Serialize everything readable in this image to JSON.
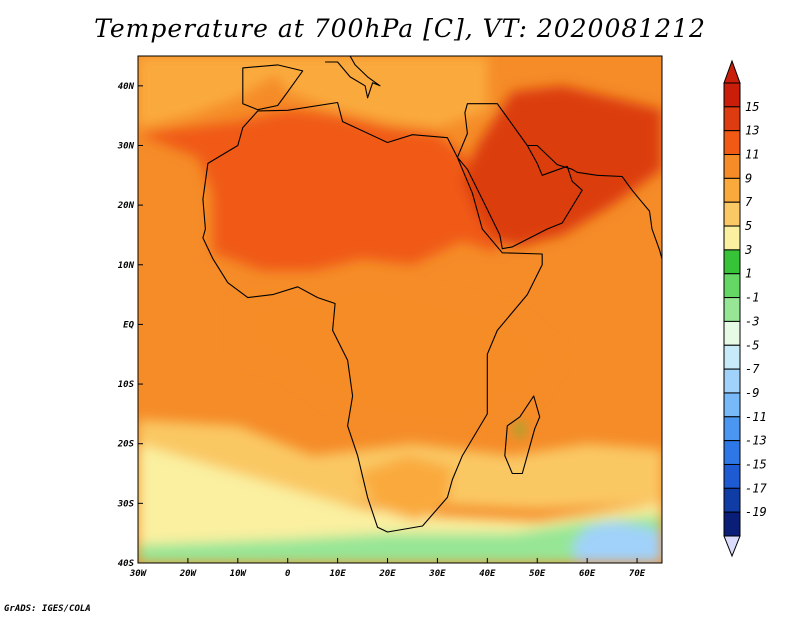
{
  "title": "Temperature at 700hPa [C], VT: 2020081212",
  "credit": "GrADS: IGES/COLA",
  "chart_data": {
    "type": "heatmap",
    "variable": "Temperature at 700hPa",
    "units": "C",
    "valid_time": "2020081212",
    "lon_range": [
      -30,
      75
    ],
    "lat_range": [
      -40,
      45
    ],
    "x_tick_labels": [
      {
        "lon": -30,
        "label": "30W"
      },
      {
        "lon": -20,
        "label": "20W"
      },
      {
        "lon": -10,
        "label": "10W"
      },
      {
        "lon": 0,
        "label": "0"
      },
      {
        "lon": 10,
        "label": "10E"
      },
      {
        "lon": 20,
        "label": "20E"
      },
      {
        "lon": 30,
        "label": "30E"
      },
      {
        "lon": 40,
        "label": "40E"
      },
      {
        "lon": 50,
        "label": "50E"
      },
      {
        "lon": 60,
        "label": "60E"
      },
      {
        "lon": 70,
        "label": "70E"
      }
    ],
    "y_tick_labels": [
      {
        "lat": 40,
        "label": "40N"
      },
      {
        "lat": 30,
        "label": "30N"
      },
      {
        "lat": 20,
        "label": "20N"
      },
      {
        "lat": 10,
        "label": "10N"
      },
      {
        "lat": 0,
        "label": "EQ"
      },
      {
        "lat": -10,
        "label": "10S"
      },
      {
        "lat": -20,
        "label": "20S"
      },
      {
        "lat": -30,
        "label": "30S"
      },
      {
        "lat": -40,
        "label": "40S"
      }
    ],
    "colorbar": {
      "levels": [
        15,
        13,
        11,
        9,
        7,
        5,
        3,
        1,
        -1,
        -3,
        -5,
        -7,
        -9,
        -11,
        -13,
        -15,
        -17,
        -19
      ],
      "labels": [
        "15",
        "13",
        "11",
        "9",
        "7",
        "5",
        "3",
        "1",
        "-1",
        "-3",
        "-5",
        "-7",
        "-9",
        "-11",
        "-13",
        "-15",
        "-17",
        "-19"
      ],
      "colors": [
        "#c81e0a",
        "#dc3c0f",
        "#f05a14",
        "#f58c28",
        "#faaa3c",
        "#fac864",
        "#faf0a0",
        "#37c337",
        "#64d764",
        "#96e696",
        "#e6fae6",
        "#c8ebfa",
        "#a0d2fa",
        "#78b9fa",
        "#4b96f0",
        "#2d78e6",
        "#1e5ad2",
        "#0f3ca5",
        "#0a1e78"
      ],
      "top_arrow_color": "#c81e0a",
      "bottom_arrow_color": "#dcdcff"
    },
    "field_regions": [
      {
        "name": "background",
        "value": 9
      },
      {
        "name": "south-atlantic-band",
        "value": 5
      },
      {
        "name": "southern-ocean",
        "value": 3
      },
      {
        "name": "southern-cold",
        "value": -3
      },
      {
        "name": "far-south-cold",
        "value": -9
      },
      {
        "name": "sahara",
        "value": 11
      },
      {
        "name": "arabia-iran",
        "value": 13
      },
      {
        "name": "mediterranean",
        "value": 7
      },
      {
        "name": "north-atlantic",
        "value": 7
      },
      {
        "name": "central-africa",
        "value": 9
      },
      {
        "name": "southern-africa",
        "value": 7
      },
      {
        "name": "madagascar-highland",
        "value": 1
      }
    ]
  }
}
